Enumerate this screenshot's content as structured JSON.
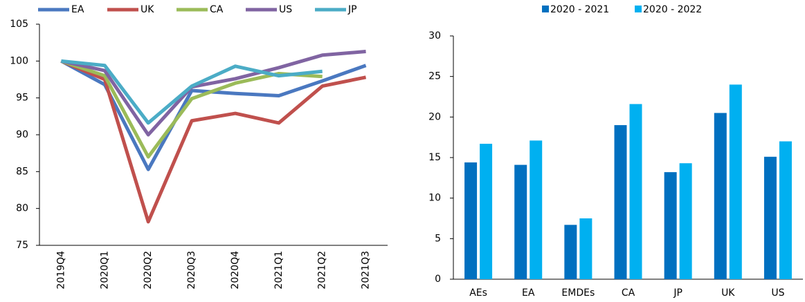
{
  "chart_data": [
    {
      "type": "line",
      "categories": [
        "2019Q4",
        "2020Q1",
        "2020Q2",
        "2020Q3",
        "2020Q4",
        "2021Q1",
        "2021Q2",
        "2021Q3"
      ],
      "ylim": [
        75,
        105
      ],
      "yticks": [
        75,
        80,
        85,
        90,
        95,
        100,
        105
      ],
      "series": [
        {
          "name": "EA",
          "color": "#4a78c0",
          "values": [
            100,
            96.8,
            85.3,
            96,
            95.6,
            95.3,
            97.3,
            99.4
          ]
        },
        {
          "name": "UK",
          "color": "#c0504d",
          "values": [
            100,
            97.5,
            78.2,
            91.9,
            92.9,
            91.6,
            96.6,
            97.8
          ]
        },
        {
          "name": "CA",
          "color": "#9bbb59",
          "values": [
            100,
            98,
            87,
            94.9,
            97,
            98.3,
            97.9,
            null
          ]
        },
        {
          "name": "US",
          "color": "#8064a2",
          "values": [
            100,
            98.7,
            90,
            96.5,
            97.6,
            99.1,
            100.8,
            101.3
          ]
        },
        {
          "name": "JP",
          "color": "#4bacc6",
          "values": [
            100,
            99.4,
            91.6,
            96.6,
            99.3,
            98,
            98.6,
            null
          ]
        }
      ]
    },
    {
      "type": "bar",
      "categories": [
        "AEs",
        "EA",
        "EMDEs",
        "CA",
        "JP",
        "UK",
        "US"
      ],
      "ylim": [
        0,
        30
      ],
      "yticks": [
        0,
        5,
        10,
        15,
        20,
        25,
        30
      ],
      "series": [
        {
          "name": "2020 - 2021",
          "color": "#0070c0",
          "values": [
            14.4,
            14.1,
            6.7,
            19,
            13.2,
            20.5,
            15.1
          ]
        },
        {
          "name": "2020 - 2022",
          "color": "#00b0f0",
          "values": [
            16.7,
            17.1,
            7.5,
            21.6,
            14.3,
            24,
            17
          ]
        }
      ]
    }
  ]
}
